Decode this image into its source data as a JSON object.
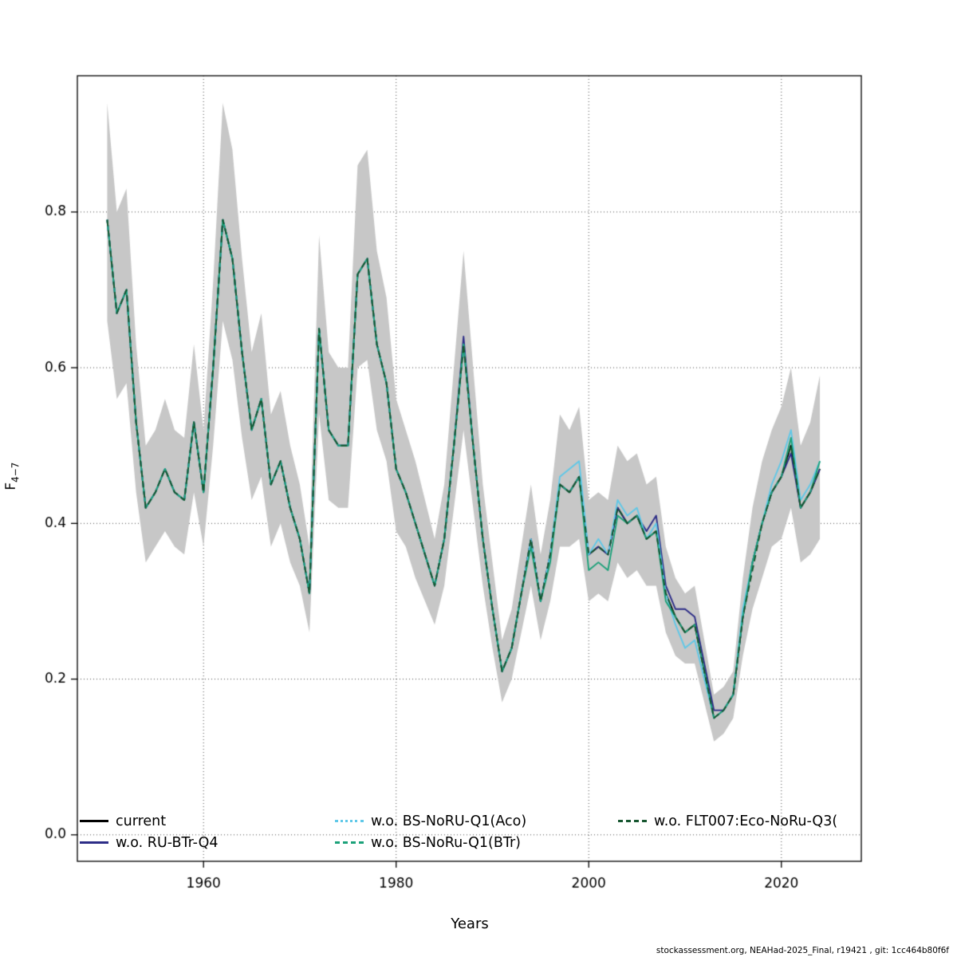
{
  "footer": "stockassessment.org, NEAHad-2025_Final, r19421 , git: 1cc464b80f6f",
  "axis": {
    "xlabel": "Years",
    "ylabel_main": "F",
    "ylabel_sub": "4−7"
  },
  "chart_data": {
    "type": "line",
    "title": "",
    "xlabel": "Years",
    "ylabel": "F_4-7",
    "x_start": 1950,
    "x_end": 2024,
    "xlim": [
      1946.9,
      2028.3
    ],
    "ylim": [
      -0.034,
      0.975
    ],
    "xticks": [
      1960,
      1980,
      2000,
      2020
    ],
    "xticklabels": [
      "1960",
      "1980",
      "2000",
      "2020"
    ],
    "yticks": [
      0.0,
      0.2,
      0.4,
      0.6,
      0.8
    ],
    "yticklabels": [
      "0.0",
      "0.2",
      "0.4",
      "0.6",
      "0.8"
    ],
    "grid": "dotted",
    "legend_position": "bottom-inside",
    "legend_order": [
      0,
      2,
      4,
      1,
      3
    ],
    "band": {
      "applies_to": "current",
      "color": "#c7c7c7",
      "lower": [
        0.66,
        0.56,
        0.58,
        0.44,
        0.35,
        0.37,
        0.39,
        0.37,
        0.36,
        0.44,
        0.37,
        0.5,
        0.66,
        0.61,
        0.51,
        0.43,
        0.46,
        0.37,
        0.4,
        0.35,
        0.32,
        0.26,
        0.54,
        0.43,
        0.42,
        0.42,
        0.6,
        0.61,
        0.52,
        0.48,
        0.39,
        0.37,
        0.33,
        0.3,
        0.27,
        0.32,
        0.42,
        0.52,
        0.42,
        0.32,
        0.24,
        0.17,
        0.2,
        0.26,
        0.32,
        0.25,
        0.3,
        0.37,
        0.37,
        0.38,
        0.3,
        0.31,
        0.3,
        0.35,
        0.33,
        0.34,
        0.32,
        0.32,
        0.26,
        0.23,
        0.22,
        0.22,
        0.17,
        0.12,
        0.13,
        0.15,
        0.23,
        0.29,
        0.33,
        0.37,
        0.38,
        0.42,
        0.35,
        0.36,
        0.38
      ],
      "upper": [
        0.94,
        0.8,
        0.83,
        0.63,
        0.5,
        0.52,
        0.56,
        0.52,
        0.51,
        0.63,
        0.52,
        0.71,
        0.94,
        0.88,
        0.74,
        0.62,
        0.67,
        0.54,
        0.57,
        0.5,
        0.45,
        0.37,
        0.77,
        0.62,
        0.6,
        0.6,
        0.86,
        0.88,
        0.75,
        0.69,
        0.56,
        0.52,
        0.48,
        0.43,
        0.38,
        0.45,
        0.6,
        0.75,
        0.6,
        0.45,
        0.35,
        0.25,
        0.29,
        0.37,
        0.45,
        0.36,
        0.43,
        0.54,
        0.52,
        0.55,
        0.43,
        0.44,
        0.43,
        0.5,
        0.48,
        0.49,
        0.45,
        0.46,
        0.37,
        0.33,
        0.31,
        0.32,
        0.25,
        0.18,
        0.19,
        0.21,
        0.33,
        0.42,
        0.48,
        0.52,
        0.55,
        0.6,
        0.5,
        0.53,
        0.59
      ]
    },
    "series": [
      {
        "name": "current",
        "color": "#000000",
        "legend_style": "solid",
        "plot_dash": [],
        "values": [
          0.79,
          0.67,
          0.7,
          0.53,
          0.42,
          0.44,
          0.47,
          0.44,
          0.43,
          0.53,
          0.44,
          0.6,
          0.79,
          0.74,
          0.62,
          0.52,
          0.56,
          0.45,
          0.48,
          0.42,
          0.38,
          0.31,
          0.65,
          0.52,
          0.5,
          0.5,
          0.72,
          0.74,
          0.63,
          0.58,
          0.47,
          0.44,
          0.4,
          0.36,
          0.32,
          0.38,
          0.5,
          0.63,
          0.5,
          0.38,
          0.29,
          0.21,
          0.24,
          0.31,
          0.38,
          0.3,
          0.36,
          0.45,
          0.44,
          0.46,
          0.36,
          0.37,
          0.36,
          0.42,
          0.4,
          0.41,
          0.38,
          0.39,
          0.31,
          0.28,
          0.26,
          0.27,
          0.21,
          0.15,
          0.16,
          0.18,
          0.28,
          0.35,
          0.4,
          0.44,
          0.46,
          0.5,
          0.42,
          0.44,
          0.47
        ]
      },
      {
        "name": "w.o. RU-BTr-Q4",
        "color": "#2d2d87",
        "legend_style": "solid",
        "plot_dash": [],
        "values": [
          0.79,
          0.67,
          0.7,
          0.53,
          0.42,
          0.44,
          0.47,
          0.44,
          0.43,
          0.53,
          0.44,
          0.6,
          0.79,
          0.74,
          0.62,
          0.52,
          0.56,
          0.45,
          0.48,
          0.42,
          0.38,
          0.31,
          0.65,
          0.52,
          0.5,
          0.5,
          0.72,
          0.74,
          0.63,
          0.58,
          0.47,
          0.44,
          0.4,
          0.36,
          0.32,
          0.38,
          0.5,
          0.64,
          0.5,
          0.38,
          0.29,
          0.21,
          0.24,
          0.31,
          0.38,
          0.3,
          0.36,
          0.45,
          0.44,
          0.46,
          0.36,
          0.37,
          0.36,
          0.42,
          0.4,
          0.41,
          0.39,
          0.41,
          0.32,
          0.29,
          0.29,
          0.28,
          0.22,
          0.16,
          0.16,
          0.18,
          0.28,
          0.35,
          0.4,
          0.44,
          0.46,
          0.49,
          0.42,
          0.44,
          0.47
        ]
      },
      {
        "name": "w.o. BS-NoRU-Q1(Aco)",
        "color": "#5fc8e8",
        "legend_style": "dotted",
        "plot_dash": [],
        "values": [
          0.79,
          0.67,
          0.7,
          0.53,
          0.42,
          0.44,
          0.47,
          0.44,
          0.43,
          0.53,
          0.44,
          0.6,
          0.79,
          0.74,
          0.62,
          0.52,
          0.56,
          0.45,
          0.48,
          0.42,
          0.38,
          0.31,
          0.65,
          0.52,
          0.5,
          0.5,
          0.72,
          0.74,
          0.63,
          0.58,
          0.47,
          0.44,
          0.4,
          0.36,
          0.32,
          0.38,
          0.5,
          0.63,
          0.5,
          0.38,
          0.29,
          0.21,
          0.24,
          0.31,
          0.38,
          0.3,
          0.36,
          0.46,
          0.47,
          0.48,
          0.36,
          0.38,
          0.36,
          0.43,
          0.41,
          0.42,
          0.38,
          0.4,
          0.31,
          0.27,
          0.24,
          0.25,
          0.2,
          0.15,
          0.16,
          0.18,
          0.29,
          0.35,
          0.4,
          0.45,
          0.48,
          0.52,
          0.43,
          0.45,
          0.48
        ]
      },
      {
        "name": "w.o. BS-NoRu-Q1(BTr)",
        "color": "#1ba179",
        "legend_style": "dashed",
        "plot_dash": [],
        "values": [
          0.79,
          0.67,
          0.7,
          0.53,
          0.42,
          0.44,
          0.47,
          0.44,
          0.43,
          0.53,
          0.44,
          0.6,
          0.79,
          0.74,
          0.62,
          0.52,
          0.56,
          0.45,
          0.48,
          0.42,
          0.38,
          0.31,
          0.65,
          0.52,
          0.5,
          0.5,
          0.72,
          0.74,
          0.63,
          0.58,
          0.47,
          0.44,
          0.4,
          0.36,
          0.32,
          0.38,
          0.5,
          0.63,
          0.5,
          0.38,
          0.29,
          0.21,
          0.24,
          0.31,
          0.37,
          0.3,
          0.35,
          0.45,
          0.44,
          0.46,
          0.34,
          0.35,
          0.34,
          0.41,
          0.4,
          0.41,
          0.38,
          0.39,
          0.3,
          0.28,
          0.26,
          0.27,
          0.21,
          0.15,
          0.16,
          0.18,
          0.28,
          0.35,
          0.4,
          0.44,
          0.46,
          0.51,
          0.42,
          0.44,
          0.48
        ]
      },
      {
        "name": "w.o. FLT007:Eco-NoRu-Q3(",
        "color": "#16562f",
        "legend_style": "dashed",
        "plot_dash": [
          8,
          5
        ],
        "values": [
          0.79,
          0.67,
          0.7,
          0.53,
          0.42,
          0.44,
          0.47,
          0.44,
          0.43,
          0.53,
          0.44,
          0.6,
          0.79,
          0.74,
          0.62,
          0.52,
          0.56,
          0.45,
          0.48,
          0.42,
          0.38,
          0.31,
          0.65,
          0.52,
          0.5,
          0.5,
          0.72,
          0.74,
          0.63,
          0.58,
          0.47,
          0.44,
          0.4,
          0.36,
          0.32,
          0.38,
          0.5,
          0.63,
          0.5,
          0.38,
          0.29,
          0.21,
          0.24,
          0.31,
          0.38,
          0.3,
          0.36,
          0.45,
          0.44,
          0.46,
          0.36,
          0.37,
          0.36,
          0.42,
          0.4,
          0.41,
          0.38,
          0.39,
          0.31,
          0.28,
          0.26,
          0.27,
          0.21,
          0.15,
          0.16,
          0.18,
          0.28,
          0.34,
          0.4,
          0.44,
          0.46,
          0.5,
          0.42,
          0.44,
          0.47
        ]
      }
    ]
  }
}
